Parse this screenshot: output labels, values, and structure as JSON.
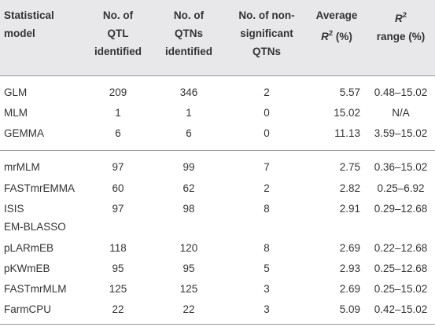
{
  "headers": {
    "model": [
      "Statistical",
      "model"
    ],
    "qtl": [
      "No. of",
      "QTL",
      "identified"
    ],
    "qtn": [
      "No. of",
      "QTNs",
      "identified"
    ],
    "ns": [
      "No. of non-",
      "significant",
      "QTNs"
    ],
    "avg": {
      "line1": "Average",
      "r": "R",
      "sup": "2",
      "unit": " (%)"
    },
    "range": {
      "r": "R",
      "sup": "2",
      "line2": "range (%)"
    }
  },
  "group1": [
    {
      "model": "GLM",
      "qtl": "209",
      "qtn": "346",
      "ns": "2",
      "avg": "5.57",
      "range": "0.48–15.02"
    },
    {
      "model": "MLM",
      "qtl": "1",
      "qtn": "1",
      "ns": "0",
      "avg": "15.02",
      "range": "N/A"
    },
    {
      "model": "GEMMA",
      "qtl": "6",
      "qtn": "6",
      "ns": "0",
      "avg": "11.13",
      "range": "3.59–15.02"
    }
  ],
  "group2": [
    {
      "model": "mrMLM",
      "qtl": "97",
      "qtn": "99",
      "ns": "7",
      "avg": "2.75",
      "range": "0.36–15.02"
    },
    {
      "model": "FASTmrEMMA",
      "qtl": "60",
      "qtn": "62",
      "ns": "2",
      "avg": "2.82",
      "range": "0.25–6.92"
    },
    {
      "model": "ISIS",
      "model2": "EM-BLASSO",
      "qtl": "97",
      "qtn": "98",
      "ns": "8",
      "avg": "2.91",
      "range": "0.29–12.68"
    },
    {
      "model": "pLARmEB",
      "qtl": "118",
      "qtn": "120",
      "ns": "8",
      "avg": "2.69",
      "range": "0.22–12.68"
    },
    {
      "model": "pKWmEB",
      "qtl": "95",
      "qtn": "95",
      "ns": "5",
      "avg": "2.93",
      "range": "0.25–12.68"
    },
    {
      "model": "FASTmrMLM",
      "qtl": "125",
      "qtn": "125",
      "ns": "3",
      "avg": "2.69",
      "range": "0.25–15.02"
    },
    {
      "model": "FarmCPU",
      "qtl": "22",
      "qtn": "22",
      "ns": "3",
      "avg": "5.09",
      "range": "0.42–15.02"
    }
  ]
}
